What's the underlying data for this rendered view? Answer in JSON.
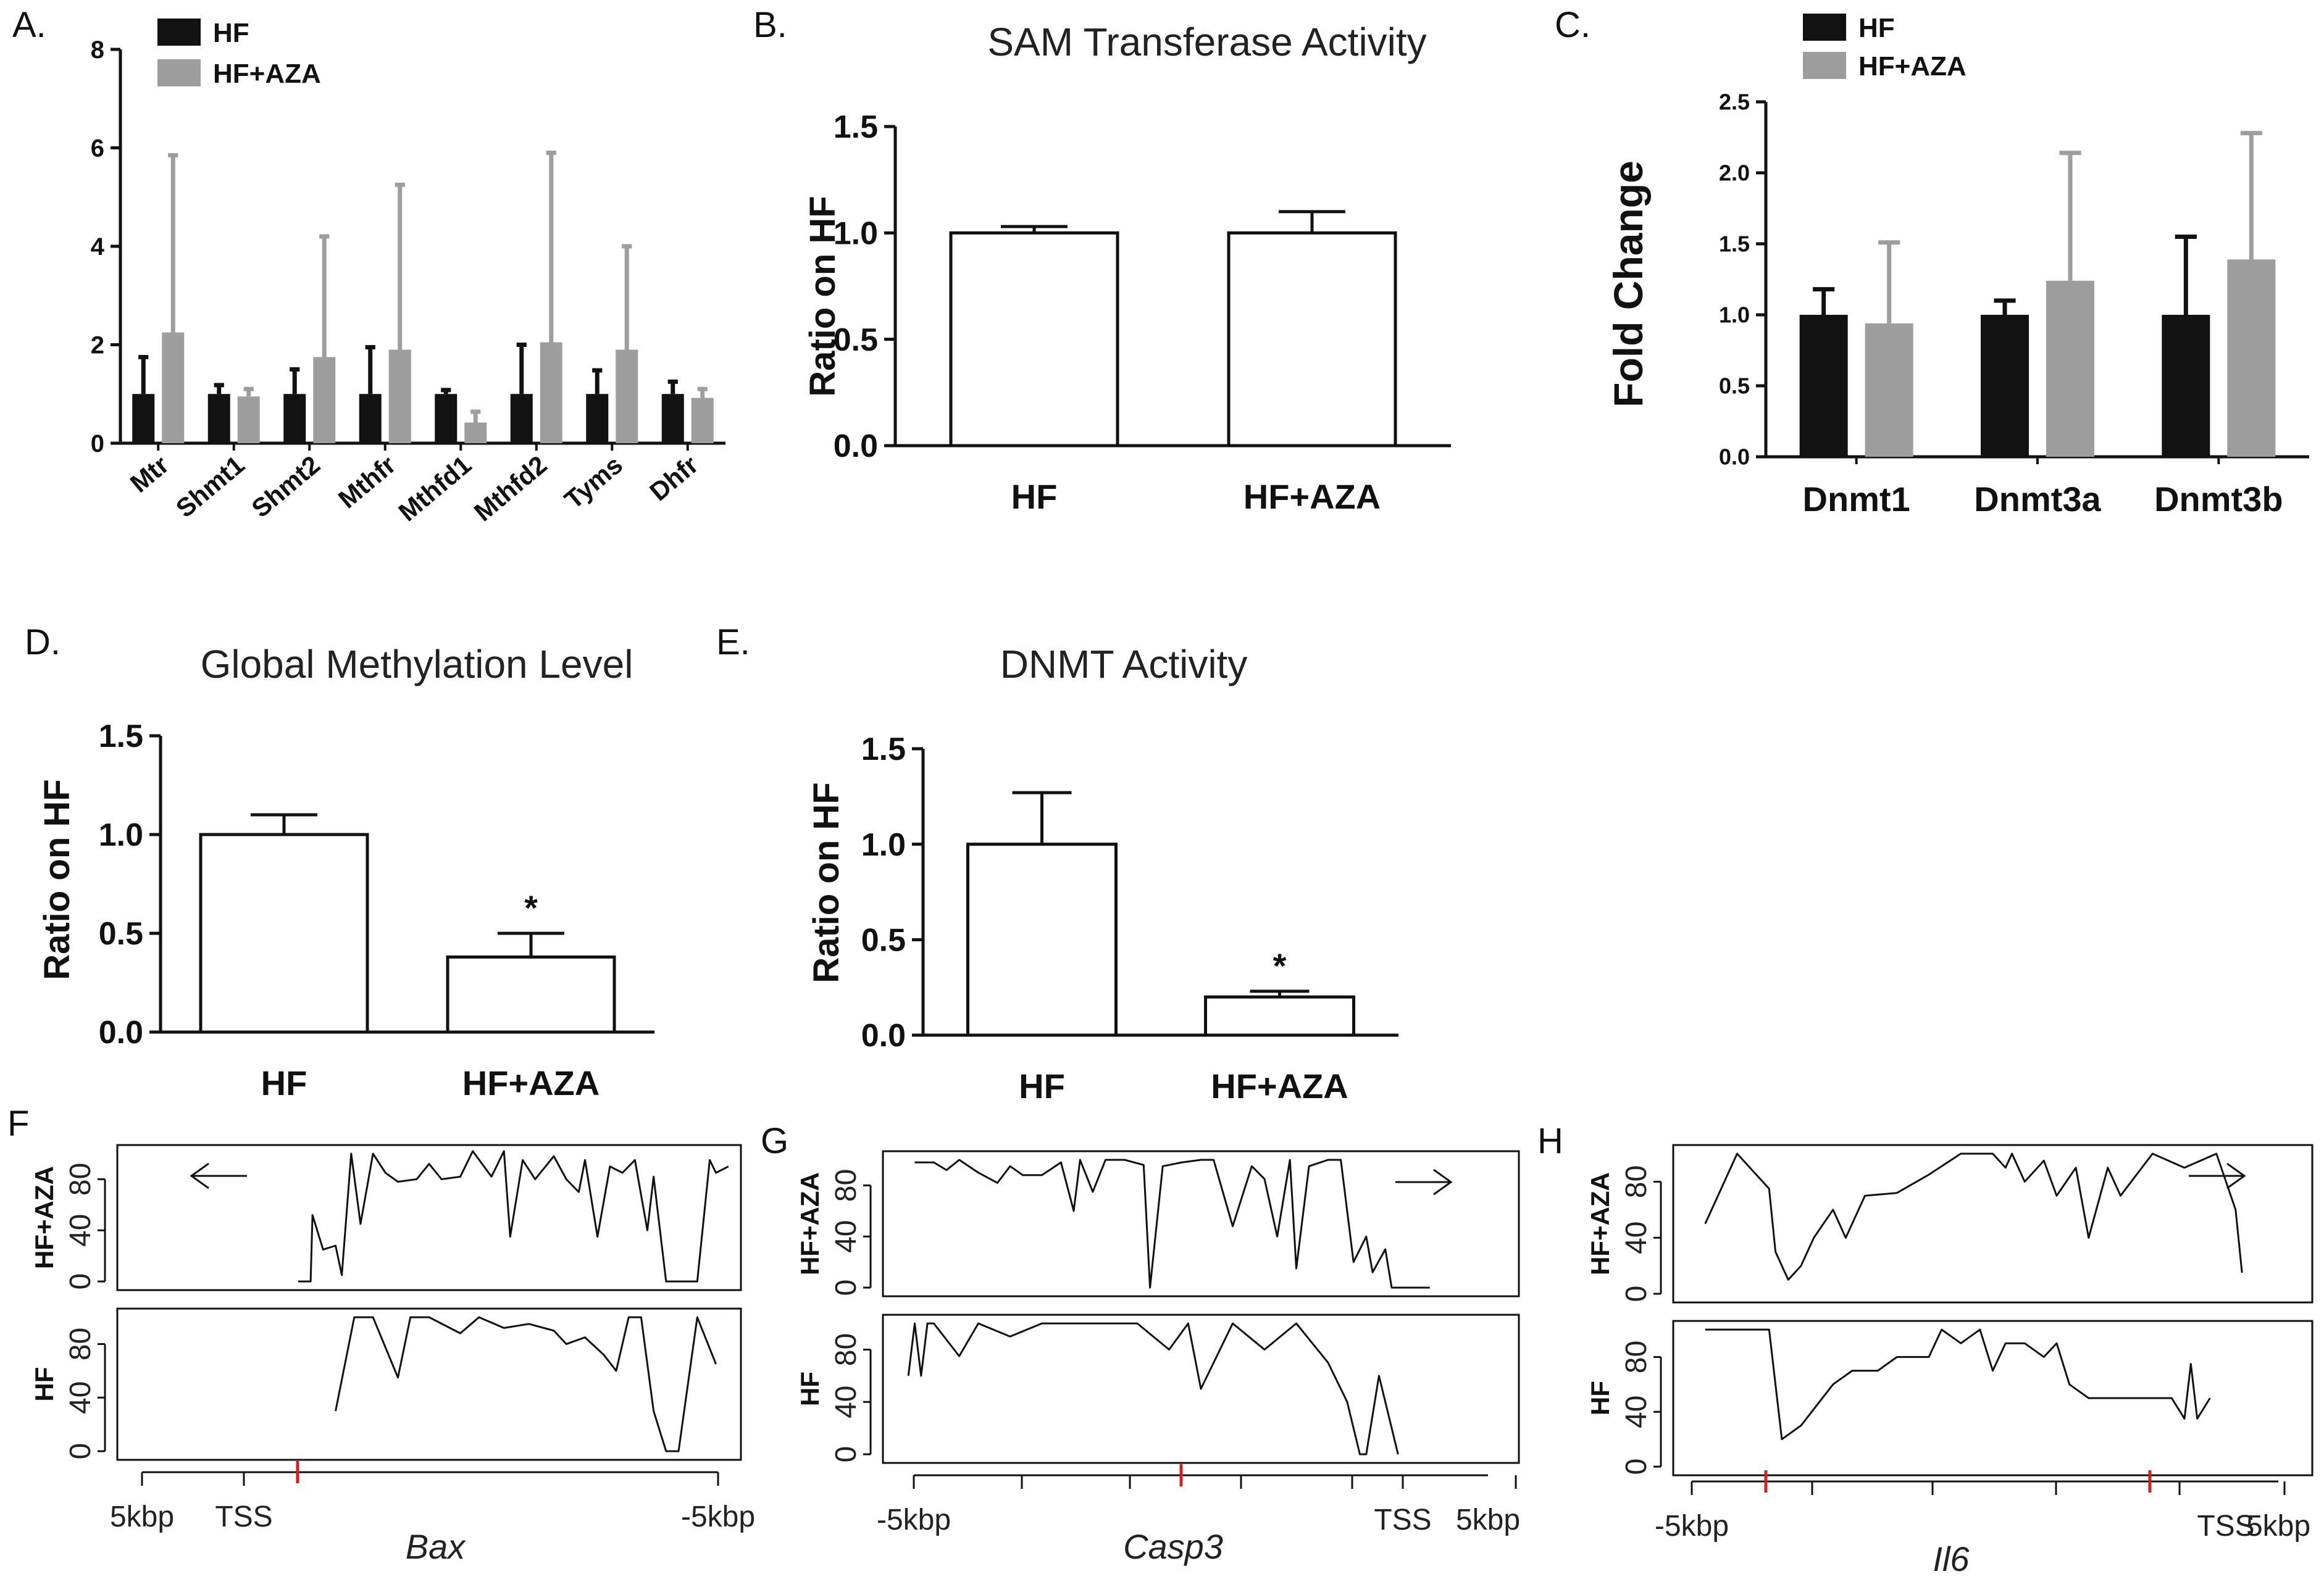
{
  "colors": {
    "hf": "#111111",
    "aza": "#9e9e9e",
    "axis": "#111111",
    "tss_marker": "#cc2222"
  },
  "chart_data": [
    {
      "panel": "A.",
      "type": "bar",
      "title": "",
      "categories": [
        "Mtr",
        "Shmt1",
        "Shmt2",
        "Mthfr",
        "Mthfd1",
        "Mthfd2",
        "Tyms",
        "Dhfr"
      ],
      "series": [
        {
          "name": "HF",
          "values": [
            1.0,
            1.0,
            1.0,
            1.0,
            1.0,
            1.0,
            1.0,
            1.0
          ],
          "errors": [
            0.75,
            0.18,
            0.5,
            0.95,
            0.08,
            1.0,
            0.48,
            0.25
          ]
        },
        {
          "name": "HF+AZA",
          "values": [
            2.25,
            0.95,
            1.75,
            1.9,
            0.42,
            2.05,
            1.9,
            0.92
          ],
          "errors": [
            3.6,
            0.15,
            2.45,
            3.35,
            0.22,
            3.85,
            2.1,
            0.18
          ]
        }
      ],
      "ylim": [
        0,
        8
      ],
      "yticks": [
        "0",
        "2",
        "4",
        "6",
        "8"
      ],
      "xlabel": "",
      "ylabel": ""
    },
    {
      "panel": "B.",
      "type": "bar",
      "title": "SAM Transferase Activity",
      "categories": [
        "HF",
        "HF+AZA"
      ],
      "values": [
        1.0,
        1.0
      ],
      "errors": [
        0.03,
        0.1
      ],
      "ylim": [
        0,
        1.5
      ],
      "yticks": [
        "0.0",
        "0.5",
        "1.0",
        "1.5"
      ],
      "ylabel": "Ratio on HF",
      "xlabel": ""
    },
    {
      "panel": "C.",
      "type": "bar",
      "title": "",
      "categories": [
        "Dnmt1",
        "Dnmt3a",
        "Dnmt3b"
      ],
      "series": [
        {
          "name": "HF",
          "values": [
            1.0,
            1.0,
            1.0
          ],
          "errors": [
            0.18,
            0.1,
            0.55
          ]
        },
        {
          "name": "HF+AZA",
          "values": [
            0.94,
            1.24,
            1.39
          ],
          "errors": [
            0.57,
            0.9,
            0.89
          ]
        }
      ],
      "ylim": [
        0,
        2.5
      ],
      "yticks": [
        "0.0",
        "0.5",
        "1.0",
        "1.5",
        "2.0",
        "2.5"
      ],
      "ylabel": "Fold Change",
      "xlabel": ""
    },
    {
      "panel": "D.",
      "type": "bar",
      "title": "Global Methylation Level",
      "categories": [
        "HF",
        "HF+AZA"
      ],
      "values": [
        1.0,
        0.38
      ],
      "errors": [
        0.1,
        0.12
      ],
      "significance": [
        "",
        "*"
      ],
      "ylim": [
        0,
        1.5
      ],
      "yticks": [
        "0.0",
        "0.5",
        "1.0",
        "1.5"
      ],
      "ylabel": "Ratio on HF",
      "xlabel": ""
    },
    {
      "panel": "E.",
      "type": "bar",
      "title": "DNMT Activity",
      "categories": [
        "HF",
        "HF+AZA"
      ],
      "values": [
        1.0,
        0.2
      ],
      "errors": [
        0.27,
        0.03
      ],
      "significance": [
        "",
        "*"
      ],
      "ylim": [
        0,
        1.5
      ],
      "yticks": [
        "0.0",
        "0.5",
        "1.0",
        "1.5"
      ],
      "ylabel": "Ratio on HF",
      "xlabel": ""
    },
    {
      "panel": "F",
      "type": "line",
      "gene": "Bax",
      "direction": "left",
      "x_labels": [
        "5kbp",
        "TSS",
        "-5kbp"
      ],
      "yticks": [
        "0",
        "40",
        "80"
      ],
      "ylim": [
        0,
        100
      ],
      "tracks": [
        {
          "label": "HF+AZA",
          "x": [
            0.29,
            0.31,
            0.313,
            0.33,
            0.35,
            0.36,
            0.375,
            0.39,
            0.41,
            0.43,
            0.45,
            0.48,
            0.5,
            0.52,
            0.55,
            0.57,
            0.6,
            0.62,
            0.63,
            0.65,
            0.67,
            0.7,
            0.72,
            0.74,
            0.75,
            0.77,
            0.79,
            0.81,
            0.83,
            0.85,
            0.86,
            0.88,
            0.9,
            0.91,
            0.93,
            0.95,
            0.96,
            0.98
          ],
          "y": [
            0,
            0,
            52,
            25,
            28,
            5,
            100,
            45,
            100,
            85,
            78,
            80,
            92,
            80,
            82,
            102,
            82,
            102,
            35,
            95,
            80,
            98,
            80,
            70,
            95,
            35,
            90,
            85,
            95,
            40,
            82,
            0,
            0,
            0,
            0,
            95,
            85,
            90
          ]
        },
        {
          "label": "HF",
          "x": [
            0.35,
            0.38,
            0.41,
            0.45,
            0.47,
            0.5,
            0.55,
            0.58,
            0.62,
            0.66,
            0.7,
            0.72,
            0.75,
            0.78,
            0.8,
            0.82,
            0.84,
            0.86,
            0.88,
            0.9,
            0.93,
            0.96
          ],
          "y": [
            30,
            100,
            100,
            55,
            100,
            100,
            88,
            100,
            92,
            95,
            90,
            80,
            85,
            72,
            60,
            100,
            100,
            30,
            0,
            0,
            100,
            65
          ]
        }
      ]
    },
    {
      "panel": "G",
      "type": "line",
      "gene": "Casp3",
      "direction": "right",
      "x_labels": [
        "-5kbp",
        "TSS",
        "5kbp"
      ],
      "yticks": [
        "0",
        "40",
        "80"
      ],
      "ylim": [
        0,
        100
      ],
      "tracks": [
        {
          "label": "HF+AZA",
          "x": [
            0.05,
            0.08,
            0.1,
            0.12,
            0.15,
            0.18,
            0.2,
            0.22,
            0.25,
            0.28,
            0.3,
            0.31,
            0.33,
            0.35,
            0.38,
            0.41,
            0.42,
            0.44,
            0.47,
            0.5,
            0.52,
            0.55,
            0.58,
            0.6,
            0.62,
            0.64,
            0.65,
            0.67,
            0.7,
            0.72,
            0.74,
            0.76,
            0.77,
            0.79,
            0.8,
            0.82,
            0.86
          ],
          "y": [
            98,
            98,
            92,
            100,
            90,
            82,
            95,
            88,
            88,
            98,
            60,
            100,
            75,
            100,
            100,
            96,
            0,
            95,
            98,
            100,
            100,
            48,
            95,
            85,
            40,
            100,
            15,
            95,
            100,
            100,
            20,
            40,
            12,
            30,
            0,
            0,
            0
          ]
        },
        {
          "label": "HF",
          "x": [
            0.04,
            0.05,
            0.06,
            0.07,
            0.08,
            0.12,
            0.15,
            0.2,
            0.25,
            0.3,
            0.35,
            0.4,
            0.45,
            0.48,
            0.5,
            0.55,
            0.6,
            0.65,
            0.7,
            0.73,
            0.75,
            0.76,
            0.77,
            0.78,
            0.81
          ],
          "y": [
            60,
            100,
            60,
            100,
            100,
            75,
            100,
            90,
            100,
            100,
            100,
            100,
            80,
            100,
            50,
            100,
            80,
            100,
            70,
            40,
            0,
            0,
            30,
            60,
            0
          ]
        }
      ]
    },
    {
      "panel": "H",
      "type": "line",
      "gene": "Il6",
      "direction": "right",
      "x_labels": [
        "-5kbp",
        "TSS",
        "5kbp"
      ],
      "yticks": [
        "0",
        "40",
        "80"
      ],
      "ylim": [
        0,
        100
      ],
      "tracks": [
        {
          "label": "HF+AZA",
          "x": [
            0.05,
            0.1,
            0.15,
            0.16,
            0.17,
            0.18,
            0.2,
            0.22,
            0.25,
            0.27,
            0.3,
            0.35,
            0.4,
            0.45,
            0.5,
            0.52,
            0.53,
            0.55,
            0.58,
            0.6,
            0.63,
            0.65,
            0.68,
            0.7,
            0.75,
            0.8,
            0.85,
            0.88,
            0.89
          ],
          "y": [
            50,
            100,
            75,
            30,
            20,
            10,
            20,
            40,
            60,
            40,
            70,
            72,
            85,
            100,
            100,
            90,
            100,
            80,
            95,
            70,
            90,
            40,
            90,
            70,
            100,
            90,
            100,
            60,
            15
          ]
        },
        {
          "label": "HF",
          "x": [
            0.05,
            0.15,
            0.16,
            0.17,
            0.2,
            0.25,
            0.28,
            0.32,
            0.35,
            0.4,
            0.42,
            0.45,
            0.48,
            0.5,
            0.52,
            0.55,
            0.58,
            0.6,
            0.62,
            0.65,
            0.78,
            0.8,
            0.81,
            0.82,
            0.84
          ],
          "y": [
            100,
            100,
            60,
            20,
            30,
            60,
            70,
            70,
            80,
            80,
            100,
            90,
            100,
            70,
            90,
            90,
            80,
            90,
            60,
            50,
            50,
            35,
            75,
            35,
            50
          ]
        }
      ]
    }
  ]
}
